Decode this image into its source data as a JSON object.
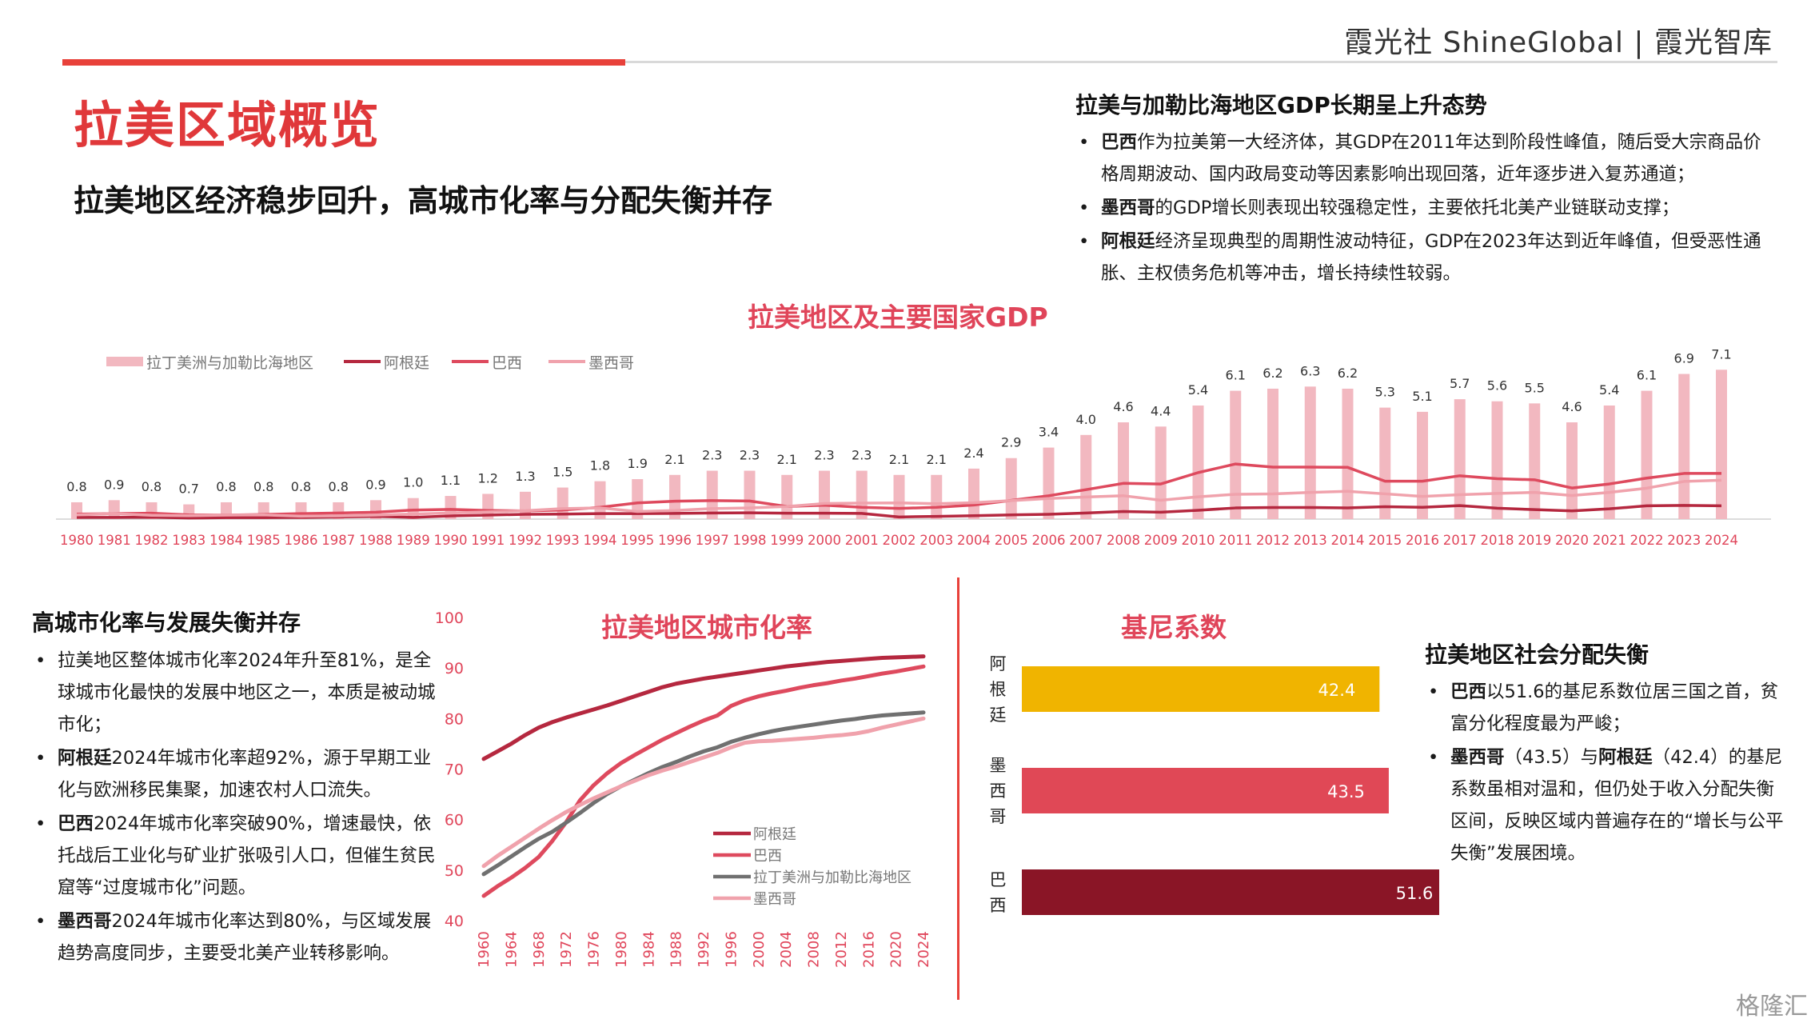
{
  "header": {
    "brand": "霞光社 ShineGlobal | 霞光智库",
    "title": "拉美区域概览",
    "subtitle": "拉美地区经济稳步回升，高城市化率与分配失衡并存"
  },
  "gdp_section": {
    "title": "拉美与加勒比海地区GDP长期呈上升态势",
    "bullets": [
      {
        "bold": "巴西",
        "text": "作为拉美第一大经济体，其GDP在2011年达到阶段性峰值，随后受大宗商品价格周期波动、国内政局变动等因素影响出现回落，近年逐步进入复苏通道；"
      },
      {
        "bold": "墨西哥",
        "text": "的GDP增长则表现出较强稳定性，主要依托北美产业链联动支撑；"
      },
      {
        "bold": "阿根廷",
        "text": "经济呈现典型的周期性波动特征，GDP在2023年达到近年峰值，但受恶性通胀、主权债务危机等冲击，增长持续性较弱。"
      }
    ]
  },
  "urban_section": {
    "title": "高城市化率与发展失衡并存",
    "bullets": [
      {
        "bold": "",
        "text": "拉美地区整体城市化率2024年升至81%，是全球城市化最快的发展中地区之一，本质是被动城市化；"
      },
      {
        "bold": "阿根廷",
        "text": "2024年城市化率超92%，源于早期工业化与欧洲移民集聚，加速农村人口流失。"
      },
      {
        "bold": "巴西",
        "text": "2024年城市化率突破90%，增速最快，依托战后工业化与矿业扩张吸引人口，但催生贫民窟等“过度城市化”问题。"
      },
      {
        "bold": "墨西哥",
        "text": "2024年城市化率达到80%，与区域发展趋势高度同步，主要受北美产业转移影响。"
      }
    ]
  },
  "gini_section": {
    "title": "拉美地区社会分配失衡",
    "bullets": [
      {
        "bold": "巴西",
        "text": "以51.6的基尼系数位居三国之首，贫富分化程度最为严峻；"
      },
      {
        "bold": "墨西哥",
        "text": "（43.5）与",
        "bold2": "阿根廷",
        "text2": "（42.4）的基尼系数虽相对温和，但仍处于收入分配失衡区间，反映区域内普遍存在的“增长与公平失衡”发展困境。"
      }
    ]
  },
  "watermark": "格隆汇",
  "colors": {
    "accent_red": "#e8413a",
    "title_red": "#e0383a",
    "lac_bar": "#f2b8c0",
    "argentina": "#b5283f",
    "brazil": "#de4a5e",
    "mexico": "#f0a2ac",
    "lac_line": "#707070",
    "gini_argentina": "#f0b400",
    "gini_mexico": "#e04856",
    "gini_brazil": "#8a1526"
  },
  "chart_data": [
    {
      "type": "bar",
      "title": "拉美地区及主要国家GDP",
      "legend": [
        "拉丁美洲与加勒比海地区",
        "阿根廷",
        "巴西",
        "墨西哥"
      ],
      "legend_position": "top-left",
      "categories": [
        "1980",
        "1981",
        "1982",
        "1983",
        "1984",
        "1985",
        "1986",
        "1987",
        "1988",
        "1989",
        "1990",
        "1991",
        "1992",
        "1993",
        "1994",
        "1995",
        "1996",
        "1997",
        "1998",
        "1999",
        "2000",
        "2001",
        "2002",
        "2003",
        "2004",
        "2005",
        "2006",
        "2007",
        "2008",
        "2009",
        "2010",
        "2011",
        "2012",
        "2013",
        "2014",
        "2015",
        "2016",
        "2017",
        "2018",
        "2019",
        "2020",
        "2021",
        "2022",
        "2023",
        "2024"
      ],
      "series": [
        {
          "name": "拉丁美洲与加勒比海地区",
          "kind": "bar",
          "values": [
            0.8,
            0.9,
            0.8,
            0.7,
            0.8,
            0.8,
            0.8,
            0.8,
            0.9,
            1.0,
            1.1,
            1.2,
            1.3,
            1.5,
            1.8,
            1.9,
            2.1,
            2.3,
            2.3,
            2.1,
            2.3,
            2.3,
            2.1,
            2.1,
            2.4,
            2.9,
            3.4,
            4.0,
            4.6,
            4.4,
            5.4,
            6.1,
            6.2,
            6.3,
            6.2,
            5.3,
            5.1,
            5.7,
            5.6,
            5.5,
            4.6,
            5.4,
            6.1,
            6.9,
            7.1
          ]
        },
        {
          "name": "阿根廷",
          "kind": "line",
          "values": [
            0.08,
            0.08,
            0.09,
            0.05,
            0.07,
            0.07,
            0.08,
            0.1,
            0.13,
            0.08,
            0.15,
            0.19,
            0.23,
            0.24,
            0.26,
            0.26,
            0.27,
            0.29,
            0.3,
            0.28,
            0.28,
            0.27,
            0.1,
            0.13,
            0.16,
            0.2,
            0.23,
            0.29,
            0.36,
            0.33,
            0.42,
            0.53,
            0.55,
            0.55,
            0.53,
            0.59,
            0.56,
            0.64,
            0.52,
            0.45,
            0.39,
            0.49,
            0.63,
            0.65,
            0.63
          ]
        },
        {
          "name": "巴西",
          "kind": "line",
          "values": [
            0.24,
            0.26,
            0.28,
            0.2,
            0.19,
            0.22,
            0.26,
            0.29,
            0.33,
            0.43,
            0.46,
            0.41,
            0.39,
            0.43,
            0.56,
            0.77,
            0.85,
            0.88,
            0.86,
            0.6,
            0.66,
            0.56,
            0.51,
            0.56,
            0.67,
            0.89,
            1.11,
            1.4,
            1.7,
            1.67,
            2.21,
            2.62,
            2.47,
            2.47,
            2.46,
            1.8,
            1.8,
            2.06,
            1.92,
            1.87,
            1.48,
            1.67,
            1.95,
            2.17,
            2.17
          ]
        },
        {
          "name": "墨西哥",
          "kind": "line",
          "values": [
            0.2,
            0.26,
            0.18,
            0.16,
            0.19,
            0.2,
            0.14,
            0.15,
            0.19,
            0.24,
            0.29,
            0.34,
            0.4,
            0.5,
            0.53,
            0.36,
            0.41,
            0.5,
            0.53,
            0.6,
            0.74,
            0.76,
            0.77,
            0.73,
            0.78,
            0.88,
            0.98,
            1.05,
            1.11,
            0.9,
            1.06,
            1.18,
            1.2,
            1.27,
            1.32,
            1.2,
            1.08,
            1.16,
            1.22,
            1.27,
            1.12,
            1.27,
            1.47,
            1.79,
            1.85
          ]
        }
      ]
    },
    {
      "type": "line",
      "title": "拉美地区城市化率",
      "ylim": [
        40,
        100
      ],
      "yticks": [
        40,
        50,
        60,
        70,
        80,
        90,
        100
      ],
      "legend_position": "bottom-right",
      "x": [
        1960,
        1962,
        1964,
        1966,
        1968,
        1970,
        1972,
        1974,
        1976,
        1978,
        1980,
        1982,
        1984,
        1986,
        1988,
        1990,
        1992,
        1994,
        1996,
        1998,
        2000,
        2002,
        2004,
        2006,
        2008,
        2010,
        2012,
        2014,
        2016,
        2018,
        2020,
        2022,
        2024
      ],
      "xticks": [
        1960,
        1964,
        1968,
        1972,
        1976,
        1980,
        1984,
        1988,
        1992,
        1996,
        2000,
        2004,
        2008,
        2012,
        2016,
        2020,
        2024
      ],
      "series": [
        {
          "name": "阿根廷",
          "values": [
            72,
            73.5,
            75,
            76.7,
            78.2,
            79.3,
            80.2,
            81,
            81.8,
            82.6,
            83.5,
            84.4,
            85.3,
            86.2,
            86.9,
            87.4,
            87.9,
            88.3,
            88.7,
            89.1,
            89.5,
            89.9,
            90.3,
            90.6,
            90.9,
            91.2,
            91.4,
            91.6,
            91.8,
            92,
            92.1,
            92.2,
            92.3
          ]
        },
        {
          "name": "巴西",
          "values": [
            44.9,
            46.8,
            48.5,
            50.4,
            52.6,
            55.8,
            59.5,
            63.8,
            66.8,
            69.2,
            71.2,
            72.8,
            74.3,
            75.8,
            77.1,
            78.4,
            79.6,
            80.6,
            82.5,
            83.6,
            84.4,
            85,
            85.5,
            86.1,
            86.6,
            87,
            87.5,
            87.9,
            88.4,
            88.9,
            89.3,
            89.8,
            90.3
          ]
        },
        {
          "name": "拉丁美洲与加勒比海地区",
          "values": [
            49.2,
            50.9,
            52.7,
            54.5,
            56.2,
            57.6,
            59.4,
            61.3,
            63.3,
            65.1,
            66.6,
            67.9,
            69.2,
            70.4,
            71.4,
            72.5,
            73.5,
            74.3,
            75.4,
            76.2,
            76.9,
            77.5,
            78,
            78.4,
            78.8,
            79.2,
            79.6,
            79.9,
            80.3,
            80.6,
            80.8,
            81,
            81.2
          ]
        },
        {
          "name": "墨西哥",
          "values": [
            50.8,
            52.8,
            54.6,
            56.4,
            58.2,
            59.9,
            61.5,
            62.9,
            64.2,
            65.4,
            66.6,
            67.7,
            68.8,
            69.7,
            70.5,
            71.4,
            72.3,
            73.2,
            74.3,
            75.2,
            75.5,
            75.6,
            75.8,
            76,
            76.2,
            76.5,
            76.7,
            77,
            77.5,
            78.2,
            78.8,
            79.4,
            80
          ]
        }
      ]
    },
    {
      "type": "bar",
      "orientation": "horizontal",
      "title": "基尼系数",
      "categories": [
        "阿根廷",
        "墨西哥",
        "巴西"
      ],
      "values": [
        42.4,
        43.5,
        51.6
      ],
      "category_labels": [
        [
          "阿",
          "根",
          "廷"
        ],
        [
          "墨",
          "西",
          "哥"
        ],
        [
          "巴",
          "西"
        ]
      ]
    }
  ]
}
